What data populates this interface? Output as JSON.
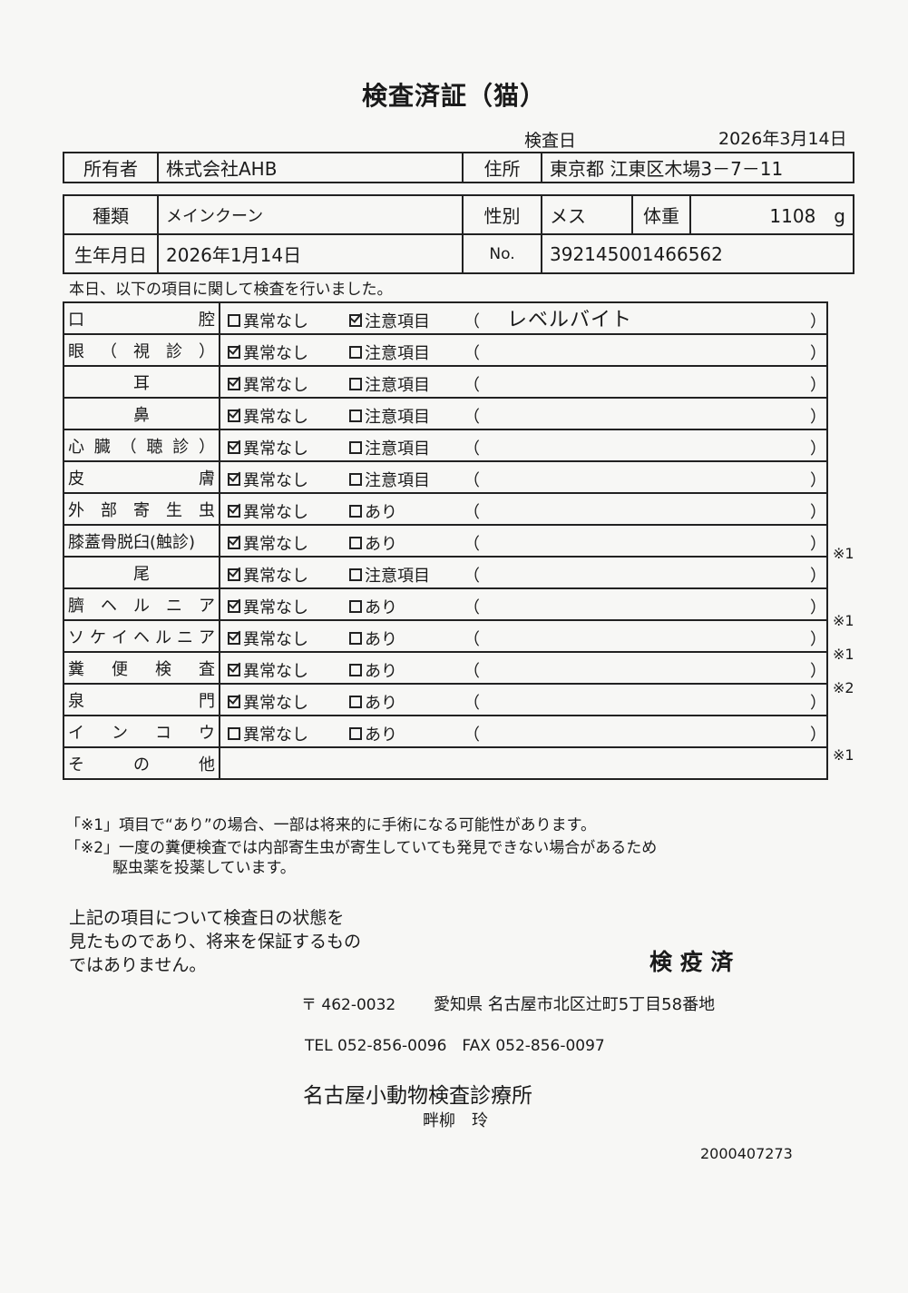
{
  "title": "検査済証（猫）",
  "inspection_date_label": "検査日",
  "inspection_date": "2026年3月14日",
  "owner": {
    "label": "所有者",
    "value": "株式会社AHB",
    "address_label": "住所",
    "address": "東京都 江東区木場3－7－11"
  },
  "pet": {
    "breed_label": "種類",
    "breed": "メインクーン",
    "sex_label": "性別",
    "sex": "メス",
    "weight_label": "体重",
    "weight": "1108　g",
    "birth_label": "生年月日",
    "birth": "2026年1月14日",
    "no_label": "No.",
    "no": "392145001466562"
  },
  "intro": "本日、以下の項目に関して検査を行いました。",
  "exam_rows": [
    {
      "chars": [
        "口",
        "腔"
      ],
      "opt1": "異常なし",
      "opt1_checked": false,
      "opt2": "注意項目",
      "opt2_checked": true,
      "remark": "レベルバイト",
      "note": ""
    },
    {
      "chars": [
        "眼",
        "（",
        "視",
        "診",
        "）"
      ],
      "opt1": "異常なし",
      "opt1_checked": true,
      "opt2": "注意項目",
      "opt2_checked": false,
      "remark": "",
      "note": ""
    },
    {
      "chars": [
        "耳"
      ],
      "center": true,
      "opt1": "異常なし",
      "opt1_checked": true,
      "opt2": "注意項目",
      "opt2_checked": false,
      "remark": "",
      "note": ""
    },
    {
      "chars": [
        "鼻"
      ],
      "center": true,
      "opt1": "異常なし",
      "opt1_checked": true,
      "opt2": "注意項目",
      "opt2_checked": false,
      "remark": "",
      "note": ""
    },
    {
      "chars": [
        "心",
        "臓",
        "（",
        "聴",
        "診",
        "）"
      ],
      "opt1": "異常なし",
      "opt1_checked": true,
      "opt2": "注意項目",
      "opt2_checked": false,
      "remark": "",
      "note": ""
    },
    {
      "chars": [
        "皮",
        "膚"
      ],
      "opt1": "異常なし",
      "opt1_checked": true,
      "opt2": "注意項目",
      "opt2_checked": false,
      "remark": "",
      "note": ""
    },
    {
      "chars": [
        "外",
        "部",
        "寄",
        "生",
        "虫"
      ],
      "opt1": "異常なし",
      "opt1_checked": true,
      "opt2": "あり",
      "opt2_checked": false,
      "remark": "",
      "note": ""
    },
    {
      "chars": [
        "膝蓋骨脱臼(触診)"
      ],
      "opt1": "異常なし",
      "opt1_checked": true,
      "opt2": "あり",
      "opt2_checked": false,
      "remark": "",
      "note": "※1"
    },
    {
      "chars": [
        "尾"
      ],
      "center": true,
      "opt1": "異常なし",
      "opt1_checked": true,
      "opt2": "注意項目",
      "opt2_checked": false,
      "remark": "",
      "note": ""
    },
    {
      "chars": [
        "臍",
        "ヘ",
        "ル",
        "ニ",
        "ア"
      ],
      "opt1": "異常なし",
      "opt1_checked": true,
      "opt2": "あり",
      "opt2_checked": false,
      "remark": "",
      "note": "※1"
    },
    {
      "chars": [
        "ソ",
        "ケ",
        "イ",
        "ヘ",
        "ル",
        "ニ",
        "ア"
      ],
      "opt1": "異常なし",
      "opt1_checked": true,
      "opt2": "あり",
      "opt2_checked": false,
      "remark": "",
      "note": "※1"
    },
    {
      "chars": [
        "糞",
        "便",
        "検",
        "査"
      ],
      "opt1": "異常なし",
      "opt1_checked": true,
      "opt2": "あり",
      "opt2_checked": false,
      "remark": "",
      "note": "※2"
    },
    {
      "chars": [
        "泉",
        "門"
      ],
      "opt1": "異常なし",
      "opt1_checked": true,
      "opt2": "あり",
      "opt2_checked": false,
      "remark": "",
      "note": ""
    },
    {
      "chars": [
        "イ",
        "ン",
        "コ",
        "ウ"
      ],
      "opt1": "異常なし",
      "opt1_checked": false,
      "opt2": "あり",
      "opt2_checked": false,
      "remark": "",
      "note": "※1"
    }
  ],
  "other_row": {
    "chars": [
      "そ",
      "の",
      "他"
    ]
  },
  "paren_open": "（",
  "paren_close": "）",
  "footnote1": "「※1」項目で“あり”の場合、一部は将来的に手術になる可能性があります。",
  "footnote2_line1": "「※2」一度の糞便検査では内部寄生虫が寄生していても発見できない場合があるため",
  "footnote2_line2": "駆虫薬を投薬しています。",
  "disclaimer": [
    "上記の項目について検査日の状態を",
    "見たものであり、将来を保証するもの",
    "ではありません。"
  ],
  "stamp": "検 疫 済",
  "clinic": {
    "postal": "〒 462-0032",
    "address": "愛知県 名古屋市北区辻町5丁目58番地",
    "tel_fax": "TEL 052-856-0096　FAX 052-856-0097",
    "name": "名古屋小動物検査診療所",
    "doctor": "畔柳　玲"
  },
  "doc_number": "2000407273"
}
